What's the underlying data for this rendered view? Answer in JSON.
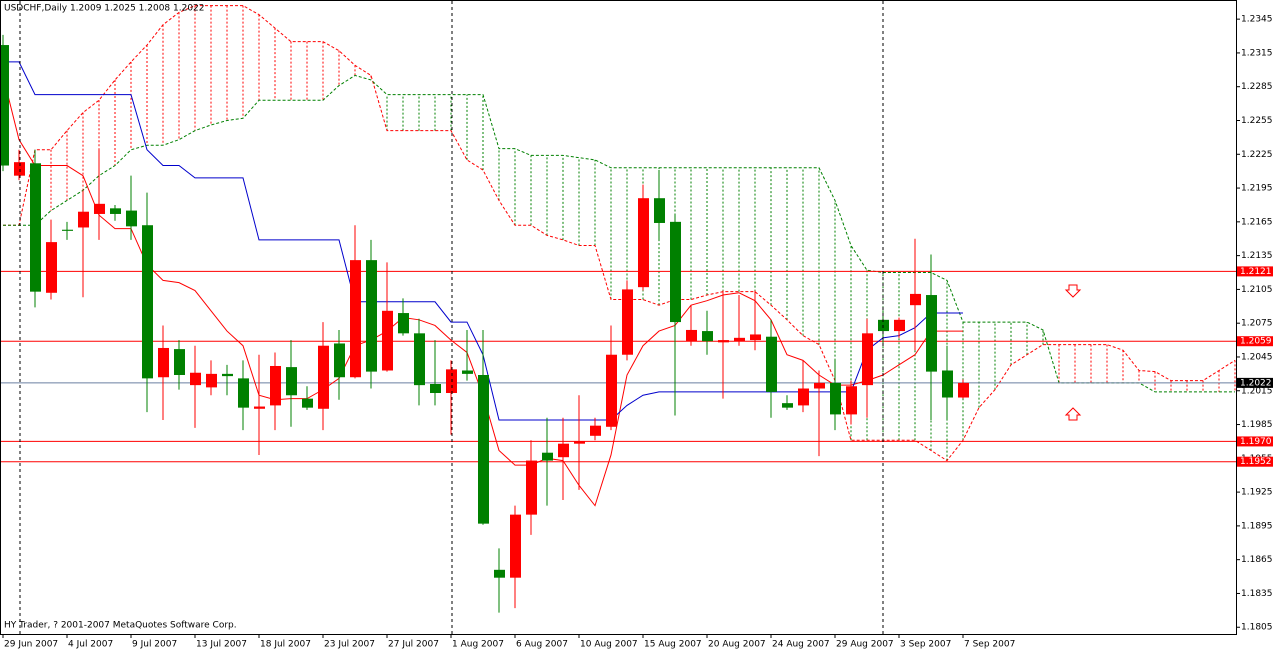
{
  "chart_data": {
    "type": "candlestick",
    "title": "USDCHF,Daily  1.2009 1.2025 1.2008 1.2022",
    "footer": "HY Trader, ? 2001-2007 MetaQuotes Software Corp.",
    "categories": [
      "29 Jun 2007",
      null,
      null,
      null,
      "4 Jul 2007",
      null,
      null,
      null,
      "9 Jul 2007",
      null,
      null,
      null,
      "13 Jul 2007",
      null,
      null,
      null,
      "18 Jul 2007",
      null,
      null,
      null,
      "23 Jul 2007",
      null,
      null,
      null,
      "27 Jul 2007",
      null,
      null,
      null,
      "1 Aug 2007",
      null,
      null,
      null,
      "6 Aug 2007",
      null,
      null,
      null,
      "10 Aug 2007",
      null,
      null,
      null,
      "15 Aug 2007",
      null,
      null,
      null,
      "20 Aug 2007",
      null,
      null,
      null,
      "24 Aug 2007",
      null,
      null,
      null,
      "29 Aug 2007",
      null,
      null,
      null,
      "3 Sep 2007",
      null,
      null,
      null,
      "7 Sep 2007",
      null,
      null,
      null,
      null,
      null,
      null,
      null,
      null,
      null,
      null,
      null,
      null,
      null,
      null,
      null,
      null,
      null
    ],
    "up_color": "#ff0000",
    "down_color": "#008000",
    "open": [
      1.2322,
      1.2206,
      1.2217,
      1.2102,
      1.2158,
      1.216,
      1.2172,
      1.2177,
      1.2175,
      1.2162,
      1.2027,
      1.2052,
      1.202,
      1.2018,
      1.203,
      1.2026,
      1.1999,
      1.2002,
      1.2036,
      1.2008,
      1.1999,
      1.2057,
      1.2027,
      1.2131,
      1.2033,
      1.2084,
      1.2066,
      1.2021,
      1.2013,
      1.2033,
      1.2029,
      1.1856,
      1.1849,
      1.1905,
      1.196,
      1.1956,
      1.1968,
      1.1975,
      1.1983,
      1.2047,
      1.2107,
      1.2186,
      1.2165,
      1.2059,
      1.2068,
      1.2058,
      1.2059,
      1.206,
      1.2063,
      1.2004,
      1.2002,
      1.2017,
      1.2022,
      1.1994,
      1.202,
      1.2078,
      1.2068,
      1.2091,
      1.21,
      1.2033,
      1.2009,
      null,
      null,
      null,
      null,
      null,
      null,
      null,
      null,
      null,
      null,
      null,
      null,
      null,
      null,
      null,
      null,
      null
    ],
    "high": [
      1.2331,
      1.2229,
      1.2229,
      1.2167,
      1.2165,
      1.2193,
      1.2229,
      1.218,
      1.2206,
      1.2191,
      1.2073,
      1.206,
      1.2055,
      1.2042,
      1.2038,
      1.2042,
      1.2047,
      1.2049,
      1.206,
      1.2019,
      1.2076,
      1.2069,
      1.2162,
      1.2149,
      1.2129,
      1.2097,
      1.2079,
      1.206,
      1.2042,
      1.2069,
      1.2069,
      1.1875,
      1.1913,
      1.1971,
      1.1991,
      1.1991,
      1.2011,
      1.1991,
      1.2073,
      1.2113,
      1.2198,
      1.2211,
      1.2171,
      1.2091,
      1.2086,
      1.2104,
      1.21,
      1.2104,
      1.2078,
      1.2011,
      1.2042,
      1.2033,
      1.2042,
      1.2024,
      1.2079,
      1.2086,
      1.208,
      1.215,
      1.2136,
      1.2055,
      1.2025,
      null,
      null,
      null,
      null,
      null,
      null,
      null,
      null,
      null,
      null,
      null,
      null,
      null,
      null,
      null,
      null,
      null
    ],
    "low": [
      1.221,
      1.2202,
      1.2089,
      1.2096,
      1.2149,
      1.2098,
      1.2149,
      1.2166,
      1.2149,
      1.1996,
      1.1989,
      1.2016,
      1.1982,
      1.2011,
      1.2011,
      1.198,
      1.1958,
      1.198,
      1.1983,
      1.1998,
      1.198,
      1.2007,
      1.2026,
      1.2017,
      1.2032,
      1.2064,
      1.2002,
      1.2002,
      1.1976,
      1.2024,
      1.1896,
      1.1818,
      1.1822,
      1.1887,
      1.1913,
      1.1918,
      1.1927,
      1.1971,
      1.198,
      1.2042,
      1.2104,
      1.2149,
      1.1993,
      1.2055,
      1.2047,
      1.2008,
      1.2055,
      1.2051,
      1.1991,
      1.1998,
      1.1996,
      1.1957,
      1.198,
      1.1985,
      1.1991,
      1.2055,
      1.2062,
      1.2051,
      1.1989,
      1.1989,
      1.2008,
      null,
      null,
      null,
      null,
      null,
      null,
      null,
      null,
      null,
      null,
      null,
      null,
      null,
      null,
      null,
      null,
      null
    ],
    "close": [
      1.2215,
      1.2218,
      1.2103,
      1.2147,
      1.2157,
      1.2174,
      1.2181,
      1.2172,
      1.2161,
      1.2026,
      1.2053,
      1.2029,
      1.2031,
      1.203,
      1.2028,
      1.2,
      1.2001,
      1.2037,
      1.2011,
      1.2,
      1.2055,
      1.2027,
      1.2131,
      1.2032,
      1.2086,
      1.2066,
      1.202,
      1.2013,
      1.2034,
      1.203,
      1.1897,
      1.1849,
      1.1905,
      1.1953,
      1.1953,
      1.1968,
      1.197,
      1.1984,
      1.2047,
      1.2105,
      1.2186,
      1.2164,
      1.2076,
      1.2069,
      1.2059,
      1.206,
      1.2062,
      1.2065,
      1.2014,
      1.2,
      1.2017,
      1.2022,
      1.1994,
      1.2019,
      1.2066,
      1.2068,
      1.2078,
      1.2101,
      1.2032,
      1.2009,
      1.2022,
      null,
      null,
      null,
      null,
      null,
      null,
      null,
      null,
      null,
      null,
      null,
      null,
      null,
      null,
      null,
      null,
      null
    ],
    "lines": [
      {
        "color": "#ff0000",
        "values": [
          1.2295,
          1.2238,
          1.2215,
          1.2215,
          1.2215,
          1.2206,
          1.2171,
          1.2159,
          1.2159,
          1.2127,
          1.2113,
          1.2111,
          1.2104,
          1.2086,
          1.2068,
          1.2055,
          1.2011,
          1.2007,
          1.2008,
          1.2008,
          1.2016,
          1.2026,
          1.2055,
          1.206,
          1.2068,
          1.208,
          1.2078,
          1.2073,
          1.206,
          1.2049,
          1.2011,
          1.1962,
          1.1949,
          1.1949,
          1.1955,
          1.1953,
          1.1931,
          1.1913,
          1.1958,
          1.2029,
          1.2055,
          1.2068,
          1.2073,
          1.2091,
          1.2095,
          1.21,
          1.2102,
          1.2095,
          1.2078,
          1.2047,
          1.2042,
          1.2029,
          1.202,
          1.202,
          1.2024,
          1.2029,
          1.2038,
          1.2047,
          1.2068,
          1.2068,
          1.2068,
          null,
          null,
          null,
          null,
          null,
          null,
          null,
          null,
          null,
          null,
          null,
          null,
          null,
          null,
          null,
          null,
          null
        ]
      },
      {
        "color": "#0000cc",
        "values": [
          1.2307,
          1.2307,
          1.2278,
          1.2278,
          1.2278,
          1.2278,
          1.2278,
          1.2278,
          1.2278,
          1.2229,
          1.2215,
          1.2215,
          1.2204,
          1.2204,
          1.2204,
          1.2204,
          1.2149,
          1.2149,
          1.2149,
          1.2149,
          1.2149,
          1.2149,
          1.2094,
          1.2094,
          1.2094,
          1.2094,
          1.2094,
          1.2094,
          1.2076,
          1.2076,
          1.2047,
          1.1989,
          1.1989,
          1.1989,
          1.1989,
          1.1989,
          1.1989,
          1.1989,
          1.1989,
          1.2002,
          1.2011,
          1.2014,
          1.2014,
          1.2014,
          1.2014,
          1.2014,
          1.2014,
          1.2014,
          1.2014,
          1.2014,
          1.2014,
          1.2014,
          1.2014,
          1.2014,
          1.2051,
          1.2062,
          1.2064,
          1.2071,
          1.2084,
          1.2084,
          1.2084,
          null,
          null,
          null,
          null,
          null,
          null,
          null,
          null,
          null,
          null,
          null,
          null,
          null,
          null,
          null,
          null,
          null
        ]
      }
    ],
    "cloud": [
      {
        "color": "#ff0000",
        "values": [
          1.2162,
          1.2162,
          1.2229,
          1.2229,
          1.2246,
          1.2262,
          1.2273,
          1.2291,
          1.2307,
          1.2322,
          1.234,
          1.2351,
          1.2357,
          1.2357,
          1.2357,
          1.2357,
          1.2349,
          1.2337,
          1.2325,
          1.2325,
          1.2325,
          1.2317,
          1.2304,
          1.2295,
          1.2246,
          1.2246,
          1.2246,
          1.2246,
          1.2246,
          1.222,
          1.2211,
          1.2184,
          1.2162,
          1.2162,
          1.2153,
          1.2149,
          1.2144,
          1.2144,
          1.2096,
          1.2096,
          1.2096,
          1.2091,
          1.2096,
          1.2096,
          1.21,
          1.2103,
          1.2103,
          1.2103,
          1.2091,
          1.2078,
          1.2064,
          1.2056,
          1.2024,
          1.1971,
          1.1971,
          1.1971,
          1.1971,
          1.1971,
          1.1962,
          1.1953,
          1.1971,
          1.2,
          1.2016,
          1.2038,
          1.2047,
          1.2056,
          1.2056,
          1.2056,
          1.2056,
          1.2056,
          1.2051,
          1.2033,
          1.2032,
          1.2024,
          1.2024,
          1.2024,
          1.2033,
          1.2042
        ]
      },
      {
        "color": "#008000",
        "values": [
          1.2162,
          1.2162,
          1.2162,
          1.2175,
          1.2184,
          1.2193,
          1.2206,
          1.2215,
          1.2229,
          1.2233,
          1.2233,
          1.2238,
          1.2246,
          1.2251,
          1.2255,
          1.2257,
          1.2273,
          1.2273,
          1.2273,
          1.2273,
          1.2273,
          1.2286,
          1.2295,
          1.2291,
          1.2278,
          1.2278,
          1.2278,
          1.2278,
          1.2278,
          1.2278,
          1.2278,
          1.223,
          1.223,
          1.2224,
          1.2224,
          1.2224,
          1.2222,
          1.222,
          1.2213,
          1.2213,
          1.2213,
          1.2213,
          1.2213,
          1.2213,
          1.2213,
          1.2213,
          1.2213,
          1.2213,
          1.2213,
          1.2213,
          1.2213,
          1.2213,
          1.2184,
          1.2144,
          1.2122,
          1.212,
          1.212,
          1.212,
          1.212,
          1.2113,
          1.2076,
          1.2076,
          1.2076,
          1.2076,
          1.2076,
          1.2069,
          1.2022,
          1.2022,
          1.2022,
          1.2022,
          1.2022,
          1.2022,
          1.2014,
          1.2014,
          1.2014,
          1.2014,
          1.2014,
          1.2014
        ]
      }
    ],
    "levels": [
      1.2121,
      1.2059,
      {
        "value": 1.197,
        "label": "1.1970"
      },
      1.1952
    ],
    "level_color": "#ff0000",
    "last_price": 1.2022,
    "last_price_color": "#6a7fa0",
    "ylim": [
      1.1799,
      1.2362
    ],
    "yticks": [
      1.2345,
      1.2315,
      1.2285,
      1.2255,
      1.2225,
      1.2195,
      1.2165,
      1.2135,
      1.2105,
      1.2075,
      1.2045,
      1.2015,
      1.1985,
      1.1955,
      1.1925,
      1.1895,
      1.1865,
      1.1835,
      1.1805
    ]
  }
}
